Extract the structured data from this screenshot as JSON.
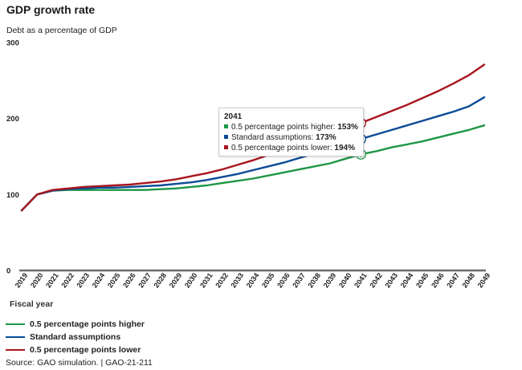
{
  "chart_data": {
    "type": "line",
    "title": "GDP growth rate",
    "ylabel": "Debt as a percentage of GDP",
    "xlabel": "Fiscal year",
    "ylim": [
      0,
      300
    ],
    "yticks": [
      0,
      100,
      200,
      300
    ],
    "grid": false,
    "legend_position": "bottom-left",
    "x": [
      "2019",
      "2020",
      "2021",
      "2022",
      "2023",
      "2024",
      "2025",
      "2026",
      "2027",
      "2028",
      "2029",
      "2030",
      "2031",
      "2032",
      "2033",
      "2034",
      "2035",
      "2036",
      "2037",
      "2038",
      "2039",
      "2040",
      "2041",
      "2042",
      "2043",
      "2044",
      "2045",
      "2046",
      "2047",
      "2048",
      "2049"
    ],
    "series": [
      {
        "name": "0.5 percentage points higher",
        "color": "#1e9646",
        "values": [
          79,
          100,
          105,
          106,
          106,
          106,
          106,
          106,
          106,
          107,
          108,
          110,
          112,
          115,
          118,
          121,
          125,
          129,
          133,
          137,
          141,
          147,
          153,
          157,
          162,
          166,
          170,
          175,
          180,
          185,
          191
        ]
      },
      {
        "name": "Standard assumptions",
        "color": "#0a4b96",
        "values": [
          79,
          100,
          105,
          107,
          108,
          109,
          109,
          110,
          111,
          112,
          114,
          116,
          119,
          123,
          127,
          132,
          137,
          142,
          148,
          154,
          160,
          166,
          173,
          179,
          185,
          191,
          197,
          203,
          209,
          216,
          228
        ]
      },
      {
        "name": "0.5 percentage points lower",
        "color": "#a8151e",
        "values": [
          79,
          100,
          106,
          108,
          110,
          111,
          112,
          113,
          115,
          117,
          120,
          124,
          128,
          133,
          139,
          145,
          152,
          159,
          166,
          174,
          182,
          188,
          194,
          202,
          210,
          218,
          227,
          236,
          246,
          257,
          271
        ]
      }
    ],
    "highlight": {
      "year": "2041",
      "index": 22
    }
  },
  "tooltip": {
    "year": "2041",
    "rows": [
      {
        "label": "0.5 percentage points higher:",
        "value": "153%",
        "color": "#1e9646"
      },
      {
        "label": "Standard assumptions:",
        "value": "173%",
        "color": "#0a4b96"
      },
      {
        "label": "0.5 percentage points lower:",
        "value": "194%",
        "color": "#a8151e"
      }
    ]
  },
  "legend": [
    {
      "label": "0.5 percentage points higher",
      "color": "#1e9646"
    },
    {
      "label": "Standard assumptions",
      "color": "#0a4b96"
    },
    {
      "label": "0.5 percentage points lower",
      "color": "#a8151e"
    }
  ],
  "source": "Source: GAO simulation.  |  GAO-21-211"
}
